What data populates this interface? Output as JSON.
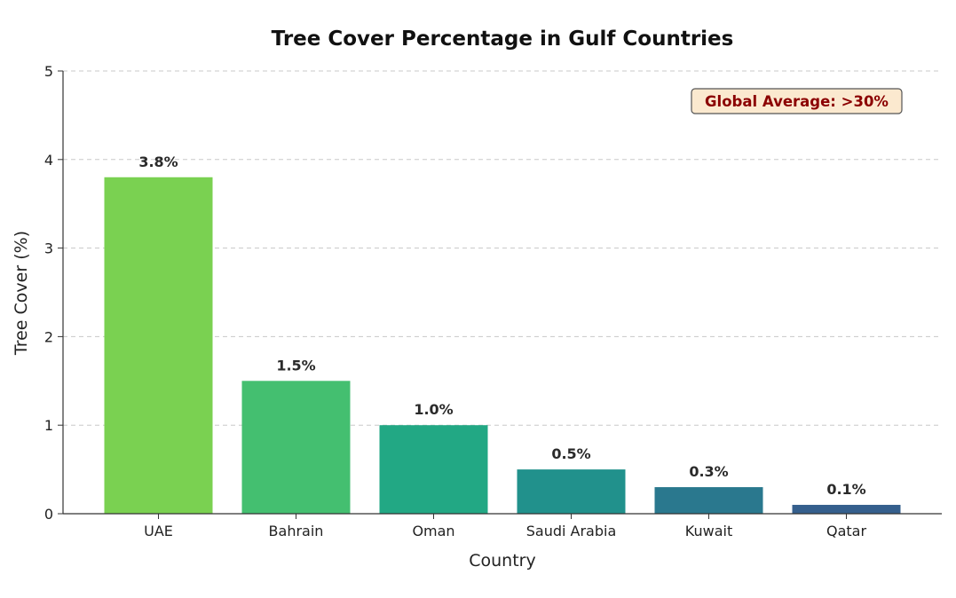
{
  "chart_data": {
    "type": "bar",
    "title": "Tree Cover Percentage in Gulf Countries",
    "xlabel": "Country",
    "ylabel": "Tree Cover (%)",
    "categories": [
      "UAE",
      "Bahrain",
      "Oman",
      "Saudi Arabia",
      "Kuwait",
      "Qatar"
    ],
    "values": [
      3.8,
      1.5,
      1.0,
      0.5,
      0.3,
      0.1
    ],
    "data_labels": [
      "3.8%",
      "1.5%",
      "1.0%",
      "0.5%",
      "0.3%",
      "0.1%"
    ],
    "ylim": [
      0,
      5
    ],
    "yticks": [
      0,
      1,
      2,
      3,
      4,
      5
    ],
    "grid": "y-dashed",
    "colors": [
      "#7ad151",
      "#44bf70",
      "#22a884",
      "#21918c",
      "#2a788e",
      "#355f8d"
    ],
    "annotation": {
      "text": "Global Average: >30%",
      "text_color": "#8b0000",
      "box_fill": "#fbe9cf",
      "box_stroke": "#555555",
      "placement": "top-right"
    }
  }
}
